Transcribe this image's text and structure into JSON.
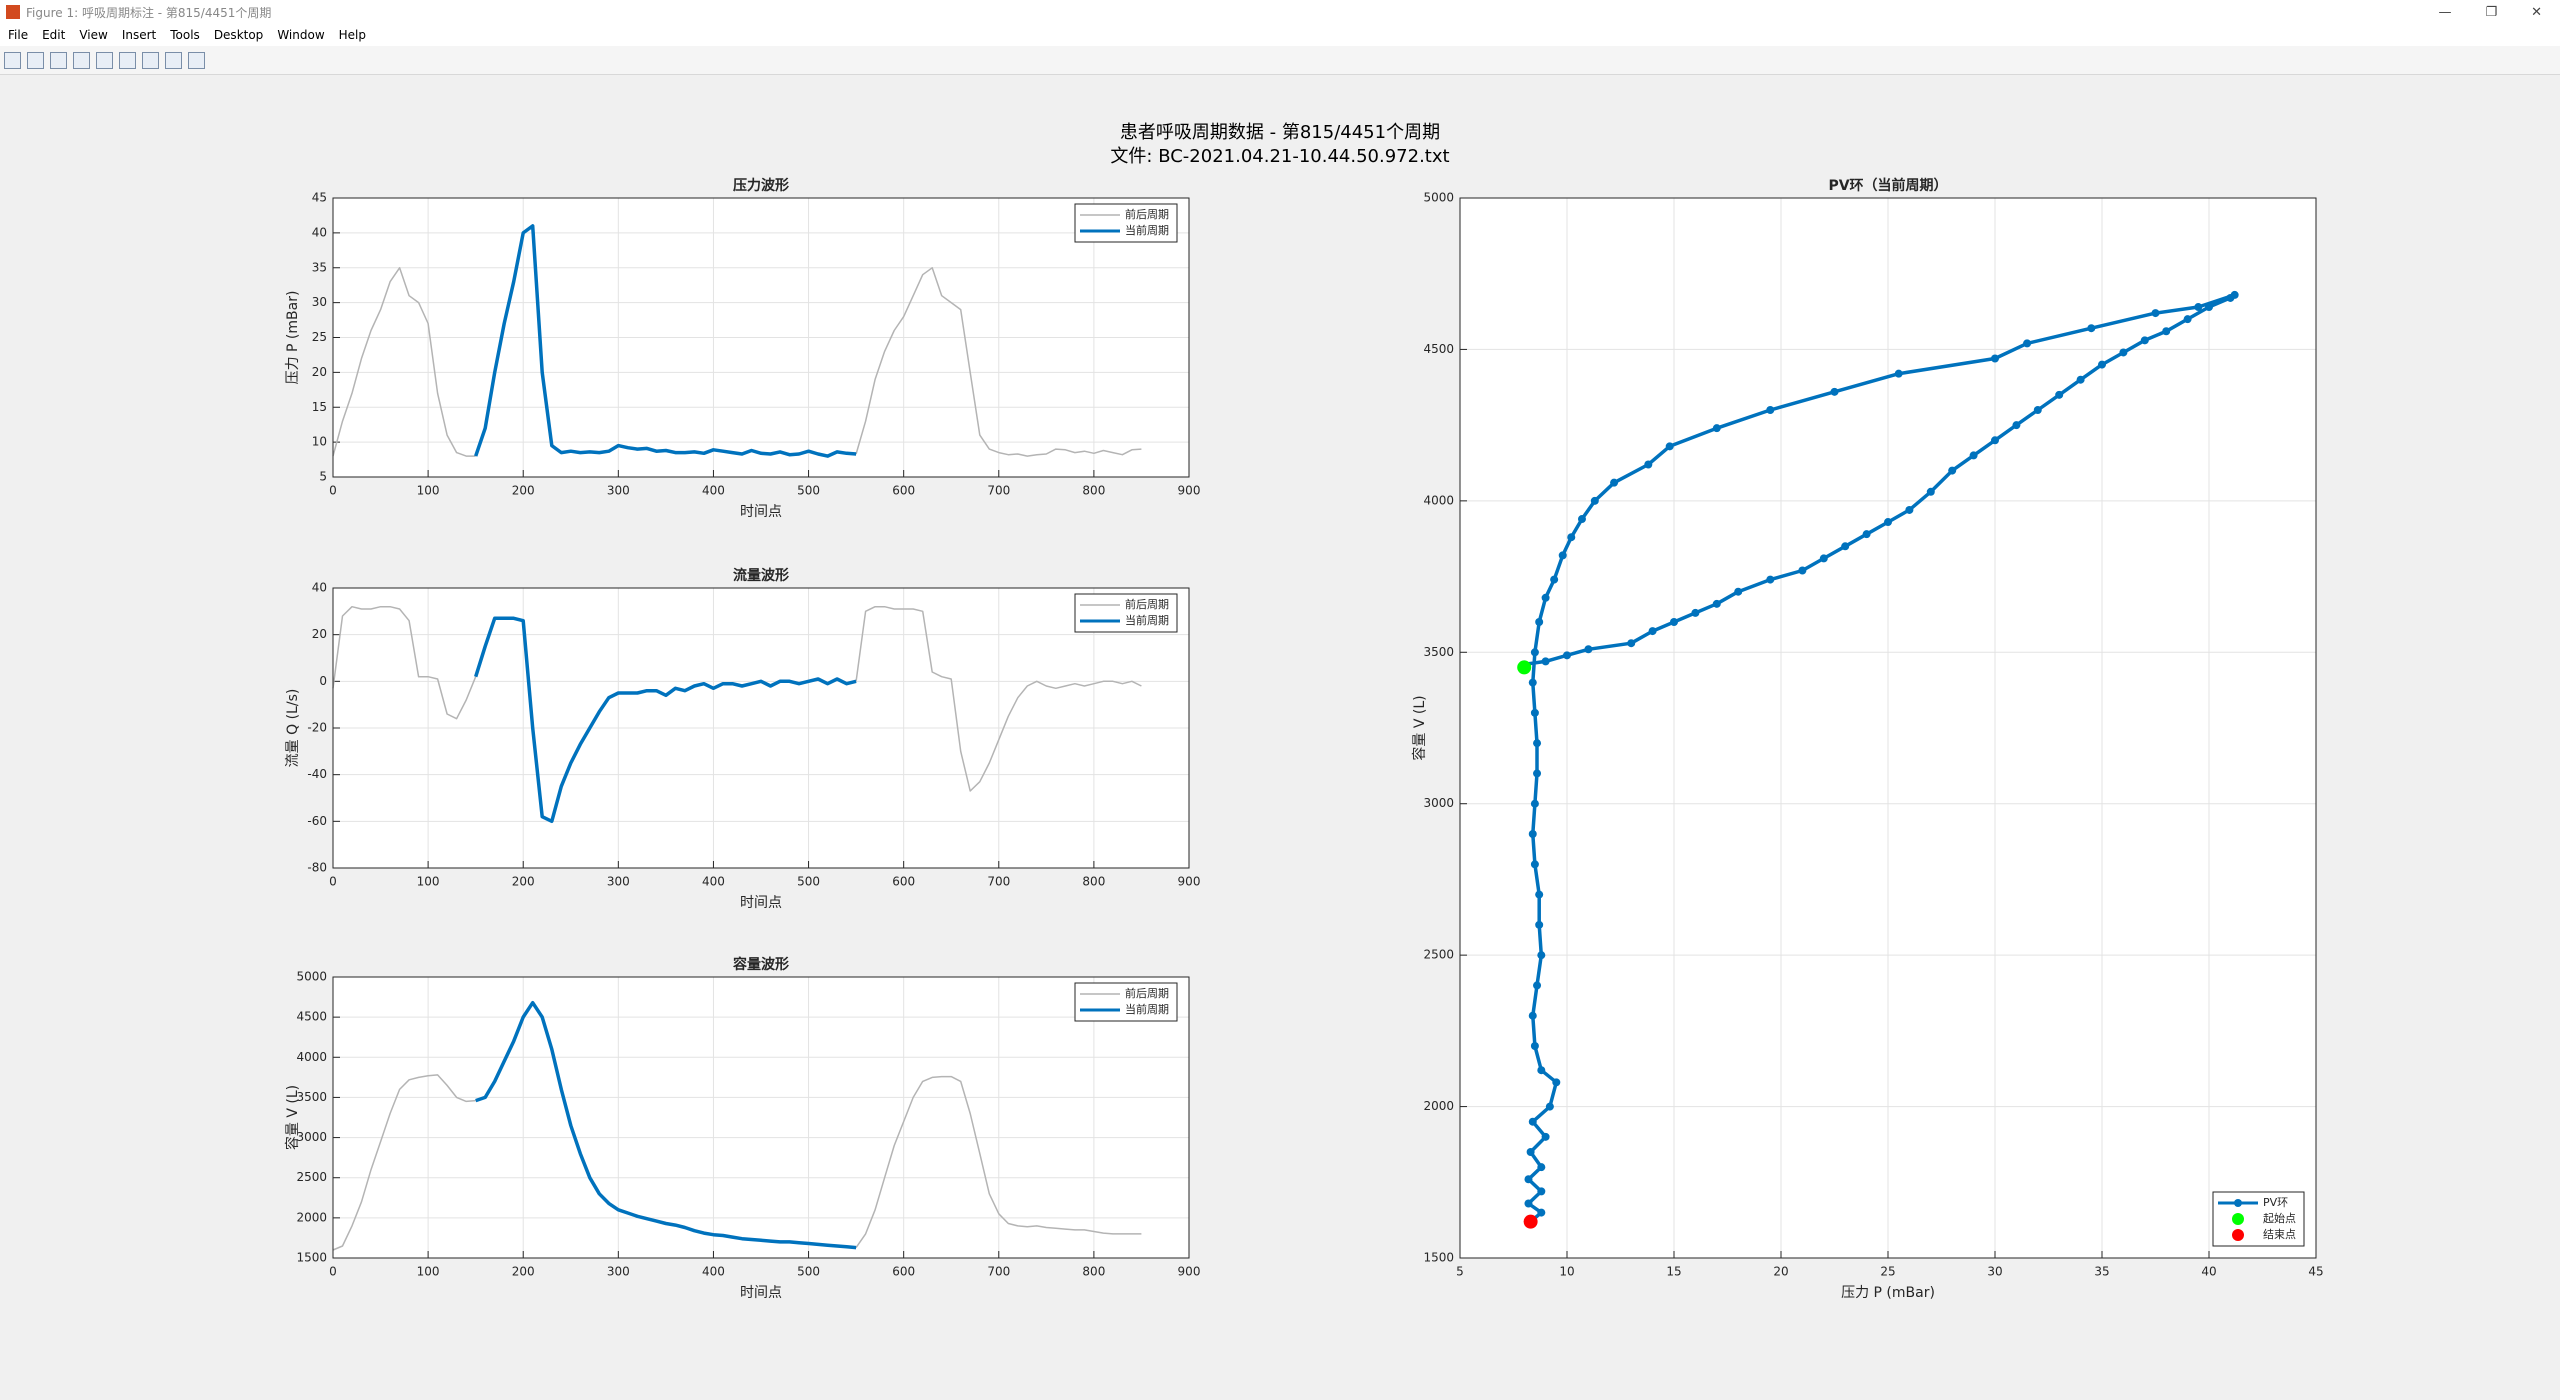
{
  "window": {
    "title": "Figure 1: 呼吸周期标注 - 第815/4451个周期",
    "menu": [
      "File",
      "Edit",
      "View",
      "Insert",
      "Tools",
      "Desktop",
      "Window",
      "Help"
    ]
  },
  "figure": {
    "title_lines": [
      "患者呼吸周期数据 - 第815/4451个周期",
      "文件: BC-2021.04.21-10.44.50.972.txt"
    ]
  },
  "chart_data": [
    {
      "type": "line",
      "title": "压力波形",
      "xlabel": "时间点",
      "ylabel": "压力 P (mBar)",
      "x": [
        0,
        10,
        20,
        30,
        40,
        50,
        60,
        70,
        80,
        90,
        100,
        110,
        120,
        130,
        140,
        150,
        160,
        170,
        180,
        190,
        200,
        210,
        220,
        230,
        240,
        250,
        260,
        270,
        280,
        290,
        300,
        310,
        320,
        330,
        340,
        350,
        360,
        370,
        380,
        390,
        400,
        410,
        420,
        430,
        440,
        450,
        460,
        470,
        480,
        490,
        500,
        510,
        520,
        530,
        540,
        550,
        560,
        570,
        580,
        590,
        600,
        610,
        620,
        630,
        640,
        650,
        660,
        670,
        680,
        690,
        700,
        710,
        720,
        730,
        740,
        750,
        760,
        770,
        780,
        790,
        800,
        810,
        820,
        830,
        840,
        850
      ],
      "series": [
        {
          "name": "前后周期",
          "color": "#b4b4b4",
          "style": "line",
          "values": [
            8,
            13,
            17,
            22,
            26,
            29,
            33,
            35,
            31,
            30,
            27,
            17,
            11,
            8.5,
            8,
            8,
            null,
            null,
            null,
            null,
            null,
            null,
            null,
            null,
            null,
            null,
            null,
            null,
            null,
            null,
            null,
            null,
            null,
            null,
            null,
            null,
            null,
            null,
            null,
            null,
            null,
            null,
            null,
            null,
            null,
            null,
            null,
            null,
            null,
            null,
            null,
            null,
            null,
            null,
            null,
            8.3,
            13,
            19,
            23,
            26,
            28,
            31,
            34,
            35,
            31,
            30,
            29,
            20,
            11,
            9,
            8.5,
            8.2,
            8.3,
            8,
            8.2,
            8.3,
            9,
            8.9,
            8.5,
            8.7,
            8.4,
            8.8,
            8.5,
            8.2,
            8.9,
            9
          ]
        },
        {
          "name": "当前周期",
          "color": "#0072bd",
          "style": "line",
          "values": [
            null,
            null,
            null,
            null,
            null,
            null,
            null,
            null,
            null,
            null,
            null,
            null,
            null,
            null,
            null,
            8,
            12,
            20,
            27,
            33,
            40,
            41,
            20,
            9.5,
            8.5,
            8.7,
            8.5,
            8.6,
            8.5,
            8.7,
            9.5,
            9.2,
            9,
            9.1,
            8.7,
            8.8,
            8.5,
            8.5,
            8.6,
            8.4,
            8.9,
            8.7,
            8.5,
            8.3,
            8.8,
            8.4,
            8.3,
            8.6,
            8.2,
            8.3,
            8.7,
            8.3,
            8,
            8.6,
            8.4,
            8.3,
            null,
            null,
            null,
            null,
            null,
            null,
            null,
            null,
            null,
            null,
            null,
            null,
            null,
            null,
            null,
            null,
            null,
            null,
            null,
            null,
            null,
            null,
            null,
            null,
            null,
            null,
            null,
            null,
            null,
            null
          ]
        }
      ],
      "xlim": [
        0,
        900
      ],
      "xticks": [
        0,
        100,
        200,
        300,
        400,
        500,
        600,
        700,
        800,
        900
      ],
      "ylim": [
        5,
        45
      ],
      "yticks": [
        5,
        10,
        15,
        20,
        25,
        30,
        35,
        40,
        45
      ],
      "grid": true,
      "legend": "northeast"
    },
    {
      "type": "line",
      "title": "流量波形",
      "xlabel": "时间点",
      "ylabel": "流量 Q (L/s)",
      "x": [
        0,
        10,
        20,
        30,
        40,
        50,
        60,
        70,
        80,
        90,
        100,
        110,
        120,
        130,
        140,
        150,
        160,
        170,
        180,
        190,
        200,
        210,
        220,
        230,
        240,
        250,
        260,
        270,
        280,
        290,
        300,
        310,
        320,
        330,
        340,
        350,
        360,
        370,
        380,
        390,
        400,
        410,
        420,
        430,
        440,
        450,
        460,
        470,
        480,
        490,
        500,
        510,
        520,
        530,
        540,
        550,
        560,
        570,
        580,
        590,
        600,
        610,
        620,
        630,
        640,
        650,
        660,
        670,
        680,
        690,
        700,
        710,
        720,
        730,
        740,
        750,
        760,
        770,
        780,
        790,
        800,
        810,
        820,
        830,
        840,
        850
      ],
      "series": [
        {
          "name": "前后周期",
          "color": "#b4b4b4",
          "style": "line",
          "values": [
            -3,
            28,
            32,
            31,
            31,
            32,
            32,
            31,
            26,
            2,
            2,
            1,
            -14,
            -16,
            -8,
            2,
            null,
            null,
            null,
            null,
            null,
            null,
            null,
            null,
            null,
            null,
            null,
            null,
            null,
            null,
            null,
            null,
            null,
            null,
            null,
            null,
            null,
            null,
            null,
            null,
            null,
            null,
            null,
            null,
            null,
            null,
            null,
            null,
            null,
            null,
            null,
            null,
            null,
            null,
            null,
            0,
            30,
            32,
            32,
            31,
            31,
            31,
            30,
            4,
            2,
            1,
            -30,
            -47,
            -43,
            -35,
            -25,
            -15,
            -7,
            -2,
            0,
            -2,
            -3,
            -2,
            -1,
            -2,
            -1,
            0,
            0,
            -1,
            0,
            -2
          ]
        },
        {
          "name": "当前周期",
          "color": "#0072bd",
          "style": "line",
          "values": [
            null,
            null,
            null,
            null,
            null,
            null,
            null,
            null,
            null,
            null,
            null,
            null,
            null,
            null,
            null,
            2,
            15,
            27,
            27,
            27,
            26,
            -20,
            -58,
            -60,
            -45,
            -35,
            -27,
            -20,
            -13,
            -7,
            -5,
            -5,
            -5,
            -4,
            -4,
            -6,
            -3,
            -4,
            -2,
            -1,
            -3,
            -1,
            -1,
            -2,
            -1,
            0,
            -2,
            0,
            0,
            -1,
            0,
            1,
            -1,
            1,
            -1,
            0,
            null,
            null,
            null,
            null,
            null,
            null,
            null,
            null,
            null,
            null,
            null,
            null,
            null,
            null,
            null,
            null,
            null,
            null,
            null,
            null,
            null,
            null,
            null,
            null,
            null,
            null,
            null,
            null,
            null,
            null
          ]
        }
      ],
      "xlim": [
        0,
        900
      ],
      "xticks": [
        0,
        100,
        200,
        300,
        400,
        500,
        600,
        700,
        800,
        900
      ],
      "ylim": [
        -80,
        40
      ],
      "yticks": [
        -80,
        -60,
        -40,
        -20,
        0,
        20,
        40
      ],
      "grid": true,
      "legend": "northeast"
    },
    {
      "type": "line",
      "title": "容量波形",
      "xlabel": "时间点",
      "ylabel": "容量 V (L)",
      "x": [
        0,
        10,
        20,
        30,
        40,
        50,
        60,
        70,
        80,
        90,
        100,
        110,
        120,
        130,
        140,
        150,
        160,
        170,
        180,
        190,
        200,
        210,
        220,
        230,
        240,
        250,
        260,
        270,
        280,
        290,
        300,
        310,
        320,
        330,
        340,
        350,
        360,
        370,
        380,
        390,
        400,
        410,
        420,
        430,
        440,
        450,
        460,
        470,
        480,
        490,
        500,
        510,
        520,
        530,
        540,
        550,
        560,
        570,
        580,
        590,
        600,
        610,
        620,
        630,
        640,
        650,
        660,
        670,
        680,
        690,
        700,
        710,
        720,
        730,
        740,
        750,
        760,
        770,
        780,
        790,
        800,
        810,
        820,
        830,
        840,
        850
      ],
      "series": [
        {
          "name": "前后周期",
          "color": "#b4b4b4",
          "style": "line",
          "values": [
            1600,
            1650,
            1900,
            2200,
            2600,
            2950,
            3300,
            3600,
            3720,
            3750,
            3770,
            3780,
            3650,
            3500,
            3450,
            3460,
            null,
            null,
            null,
            null,
            null,
            null,
            null,
            null,
            null,
            null,
            null,
            null,
            null,
            null,
            null,
            null,
            null,
            null,
            null,
            null,
            null,
            null,
            null,
            null,
            null,
            null,
            null,
            null,
            null,
            null,
            null,
            null,
            null,
            null,
            null,
            null,
            null,
            null,
            null,
            1630,
            1800,
            2100,
            2500,
            2900,
            3200,
            3500,
            3700,
            3750,
            3760,
            3760,
            3700,
            3300,
            2800,
            2300,
            2050,
            1930,
            1900,
            1890,
            1900,
            1880,
            1870,
            1860,
            1850,
            1850,
            1830,
            1810,
            1800,
            1800,
            1800,
            1800
          ]
        },
        {
          "name": "当前周期",
          "color": "#0072bd",
          "style": "line",
          "values": [
            null,
            null,
            null,
            null,
            null,
            null,
            null,
            null,
            null,
            null,
            null,
            null,
            null,
            null,
            null,
            3460,
            3500,
            3700,
            3950,
            4200,
            4500,
            4680,
            4500,
            4100,
            3600,
            3150,
            2800,
            2500,
            2300,
            2180,
            2100,
            2060,
            2020,
            1990,
            1960,
            1930,
            1910,
            1880,
            1840,
            1810,
            1790,
            1780,
            1760,
            1740,
            1730,
            1720,
            1710,
            1700,
            1700,
            1690,
            1680,
            1670,
            1660,
            1650,
            1640,
            1630,
            null,
            null,
            null,
            null,
            null,
            null,
            null,
            null,
            null,
            null,
            null,
            null,
            null,
            null,
            null,
            null,
            null,
            null,
            null,
            null,
            null,
            null,
            null,
            null,
            null,
            null,
            null,
            null,
            null,
            null
          ]
        }
      ],
      "xlim": [
        0,
        900
      ],
      "xticks": [
        0,
        100,
        200,
        300,
        400,
        500,
        600,
        700,
        800,
        900
      ],
      "ylim": [
        1500,
        5000
      ],
      "yticks": [
        1500,
        2000,
        2500,
        3000,
        3500,
        4000,
        4500,
        5000
      ],
      "grid": true,
      "legend": "northeast"
    },
    {
      "type": "line",
      "title": "PV环（当前周期）",
      "xlabel": "压力 P (mBar)",
      "ylabel": "容量 V (L)",
      "series": [
        {
          "name": "PV环",
          "color": "#0072bd",
          "style": "line-marker",
          "x": [
            8,
            9,
            10,
            11,
            13,
            14,
            15,
            16,
            17,
            18,
            19.5,
            21,
            22,
            23,
            24,
            25,
            26,
            27,
            28,
            29,
            30,
            31,
            32,
            33,
            34,
            35,
            36,
            37,
            38,
            39,
            40,
            41,
            41.2,
            39.5,
            37.5,
            34.5,
            31.5,
            30,
            25.5,
            22.5,
            19.5,
            17,
            14.8,
            13.8,
            12.2,
            11.3,
            10.7,
            10.2,
            9.8,
            9.4,
            9,
            8.7,
            8.5,
            8.4,
            8.5,
            8.6,
            8.6,
            8.5,
            8.4,
            8.5,
            8.7,
            8.7,
            8.8,
            8.6,
            8.4,
            8.5,
            8.8,
            9.5,
            9.2,
            8.4,
            9,
            8.3,
            8.8,
            8.2,
            8.8,
            8.2,
            8.8,
            8.3
          ],
          "values": [
            3460,
            3470,
            3490,
            3510,
            3530,
            3570,
            3600,
            3630,
            3660,
            3700,
            3740,
            3770,
            3810,
            3850,
            3890,
            3930,
            3970,
            4030,
            4100,
            4150,
            4200,
            4250,
            4300,
            4350,
            4400,
            4450,
            4490,
            4530,
            4560,
            4600,
            4640,
            4670,
            4680,
            4640,
            4620,
            4570,
            4520,
            4470,
            4420,
            4360,
            4300,
            4240,
            4180,
            4120,
            4060,
            4000,
            3940,
            3880,
            3820,
            3740,
            3680,
            3600,
            3500,
            3400,
            3300,
            3200,
            3100,
            3000,
            2900,
            2800,
            2700,
            2600,
            2500,
            2400,
            2300,
            2200,
            2120,
            2080,
            2000,
            1950,
            1900,
            1850,
            1800,
            1760,
            1720,
            1680,
            1650,
            1620
          ]
        },
        {
          "name": "起始点",
          "color": "#00ff00",
          "style": "marker",
          "x": [
            8
          ],
          "values": [
            3450
          ]
        },
        {
          "name": "结束点",
          "color": "#ff0000",
          "style": "marker",
          "x": [
            8.3
          ],
          "values": [
            1620
          ]
        }
      ],
      "xlim": [
        5,
        45
      ],
      "xticks": [
        5,
        10,
        15,
        20,
        25,
        30,
        35,
        40,
        45
      ],
      "ylim": [
        1500,
        5000
      ],
      "yticks": [
        1500,
        2000,
        2500,
        3000,
        3500,
        4000,
        4500,
        5000
      ],
      "grid": true,
      "legend": "southeast"
    }
  ]
}
